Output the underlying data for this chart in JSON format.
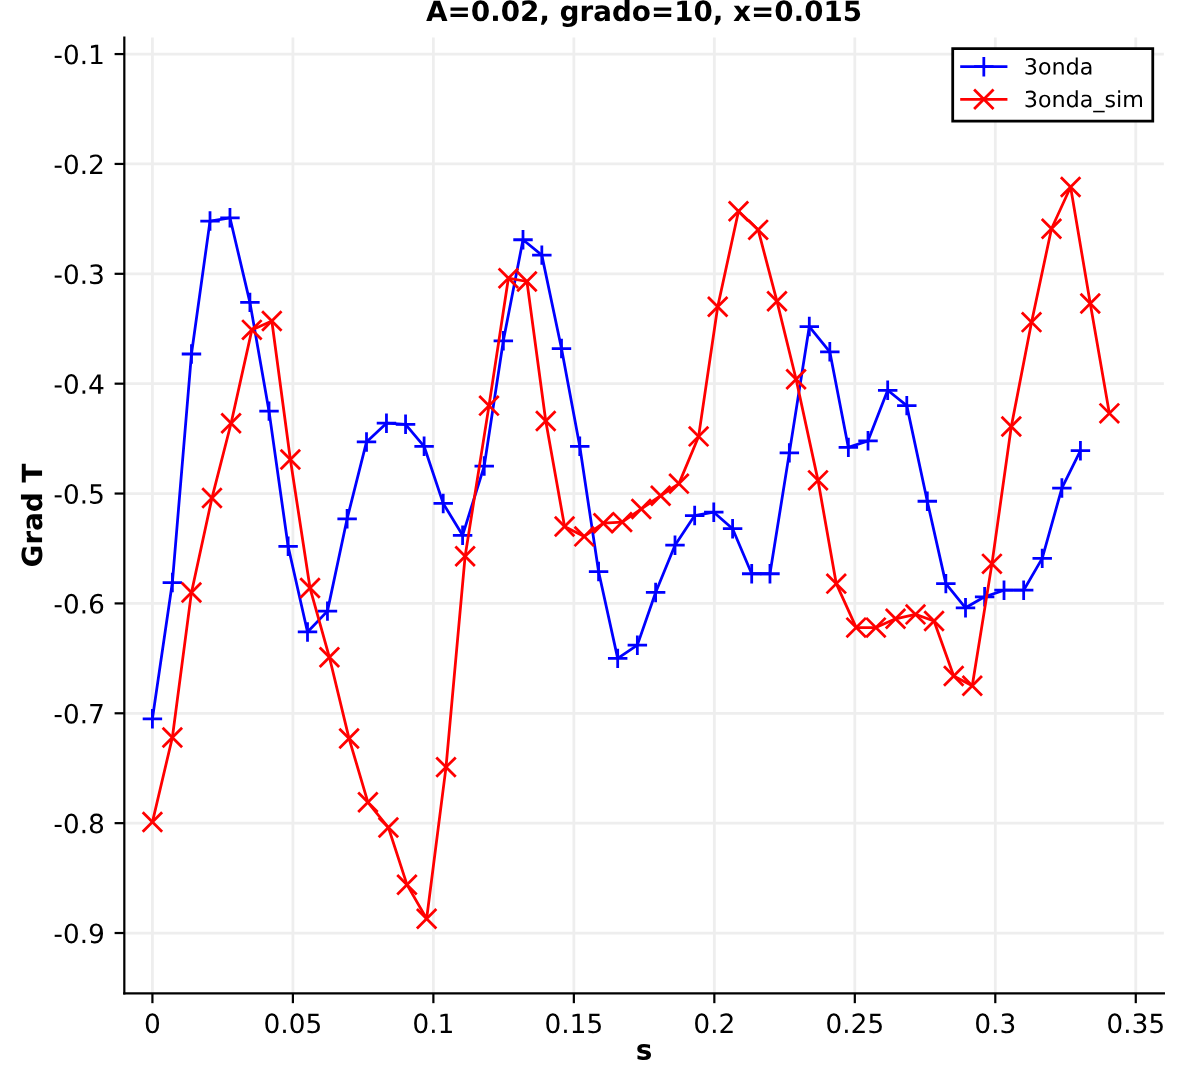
{
  "chart_data": {
    "type": "line",
    "title": "A=0.02, grado=10, x=0.015",
    "xlabel": "s",
    "ylabel": "Grad T",
    "xlim": [
      -0.01,
      0.36
    ],
    "ylim": [
      -0.955,
      -0.085
    ],
    "xticks": [
      0,
      0.05,
      0.1,
      0.15,
      0.2,
      0.25,
      0.3,
      0.35
    ],
    "yticks": [
      -0.1,
      -0.2,
      -0.3,
      -0.4,
      -0.5,
      -0.6,
      -0.7,
      -0.8,
      -0.9
    ],
    "grid": true,
    "legend": "top right",
    "line_style": "solid",
    "series": [
      {
        "name": "3onda",
        "color": "#0000ff",
        "marker": "plus",
        "x": [
          0,
          0.0071,
          0.0139,
          0.0205,
          0.0276,
          0.0347,
          0.0415,
          0.0483,
          0.0552,
          0.0623,
          0.0693,
          0.0762,
          0.0833,
          0.0901,
          0.0967,
          0.1035,
          0.1104,
          0.1181,
          0.1249,
          0.1319,
          0.1386,
          0.1456,
          0.1521,
          0.1588,
          0.1656,
          0.1726,
          0.1791,
          0.186,
          0.193,
          0.1998,
          0.2065,
          0.2133,
          0.2198,
          0.2267,
          0.2338,
          0.2411,
          0.2477,
          0.2547,
          0.2617,
          0.2685,
          0.2758,
          0.2824,
          0.2894,
          0.2962,
          0.3031,
          0.3101,
          0.3167,
          0.3237,
          0.3303
        ],
        "values": [
          -0.705,
          -0.581,
          -0.373,
          -0.252,
          -0.249,
          -0.326,
          -0.425,
          -0.548,
          -0.626,
          -0.607,
          -0.523,
          -0.453,
          -0.436,
          -0.437,
          -0.457,
          -0.509,
          -0.538,
          -0.475,
          -0.361,
          -0.269,
          -0.283,
          -0.368,
          -0.457,
          -0.571,
          -0.65,
          -0.638,
          -0.59,
          -0.547,
          -0.52,
          -0.517,
          -0.532,
          -0.573,
          -0.573,
          -0.463,
          -0.348,
          -0.371,
          -0.458,
          -0.452,
          -0.406,
          -0.42,
          -0.507,
          -0.582,
          -0.604,
          -0.594,
          -0.588,
          -0.588,
          -0.559,
          -0.495,
          -0.461
        ]
      },
      {
        "name": "3onda_sim",
        "color": "#ff0000",
        "marker": "cross",
        "x": [
          0,
          0.0071,
          0.0139,
          0.0212,
          0.028,
          0.0354,
          0.0425,
          0.0491,
          0.0561,
          0.063,
          0.07,
          0.0767,
          0.084,
          0.0906,
          0.0976,
          0.1045,
          0.1113,
          0.1198,
          0.1267,
          0.1333,
          0.14,
          0.1467,
          0.1537,
          0.1605,
          0.1672,
          0.174,
          0.1809,
          0.1874,
          0.1944,
          0.2012,
          0.2086,
          0.2156,
          0.2223,
          0.2291,
          0.2369,
          0.2434,
          0.2505,
          0.2575,
          0.2645,
          0.2716,
          0.2782,
          0.2852,
          0.2918,
          0.2988,
          0.3057,
          0.3129,
          0.32,
          0.3268,
          0.3338,
          0.3406
        ],
        "values": [
          -0.799,
          -0.722,
          -0.59,
          -0.504,
          -0.436,
          -0.351,
          -0.343,
          -0.469,
          -0.586,
          -0.649,
          -0.723,
          -0.781,
          -0.804,
          -0.856,
          -0.887,
          -0.749,
          -0.557,
          -0.42,
          -0.304,
          -0.307,
          -0.434,
          -0.53,
          -0.539,
          -0.527,
          -0.526,
          -0.514,
          -0.502,
          -0.491,
          -0.448,
          -0.33,
          -0.243,
          -0.26,
          -0.325,
          -0.396,
          -0.488,
          -0.582,
          -0.622,
          -0.622,
          -0.614,
          -0.61,
          -0.616,
          -0.666,
          -0.675,
          -0.564,
          -0.439,
          -0.344,
          -0.259,
          -0.221,
          -0.327,
          -0.427
        ]
      }
    ]
  }
}
